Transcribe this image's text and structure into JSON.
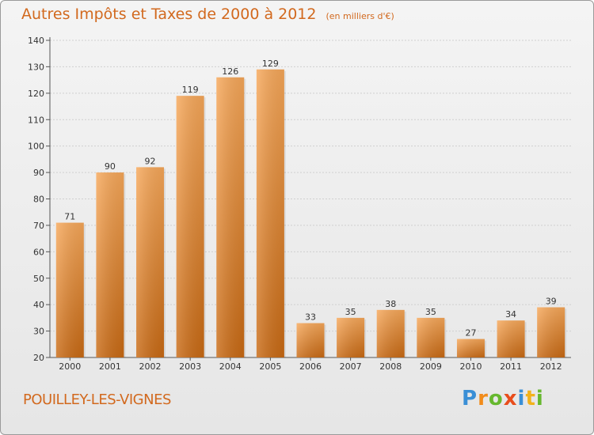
{
  "header": {
    "title": "Autres Impôts et Taxes de 2000 à 2012",
    "subtitle": "(en milliers d'€)"
  },
  "footer": {
    "commune": "POUILLEY-LES-VIGNES",
    "logo_letters": [
      "P",
      "r",
      "o",
      "x",
      "i",
      "t",
      "i"
    ],
    "logo_colors": [
      "#3a8fd6",
      "#f28c1b",
      "#66b82e",
      "#e84d1c",
      "#3a8fd6",
      "#f2b21b",
      "#66b82e"
    ]
  },
  "chart_data": {
    "type": "bar",
    "title": "Autres Impôts et Taxes de 2000 à 2012",
    "subtitle": "(en milliers d'€)",
    "xlabel": "",
    "ylabel": "",
    "categories": [
      "2000",
      "2001",
      "2002",
      "2003",
      "2004",
      "2005",
      "2006",
      "2007",
      "2008",
      "2009",
      "2010",
      "2011",
      "2012"
    ],
    "values": [
      71,
      90,
      92,
      119,
      126,
      129,
      33,
      35,
      38,
      35,
      27,
      34,
      39
    ],
    "ylim": [
      20,
      140
    ],
    "yticks": [
      20,
      30,
      40,
      50,
      60,
      70,
      80,
      90,
      100,
      110,
      120,
      130,
      140
    ],
    "grid": true,
    "bar_color_top": "#f7a85a",
    "bar_color_bottom": "#c96a14"
  }
}
